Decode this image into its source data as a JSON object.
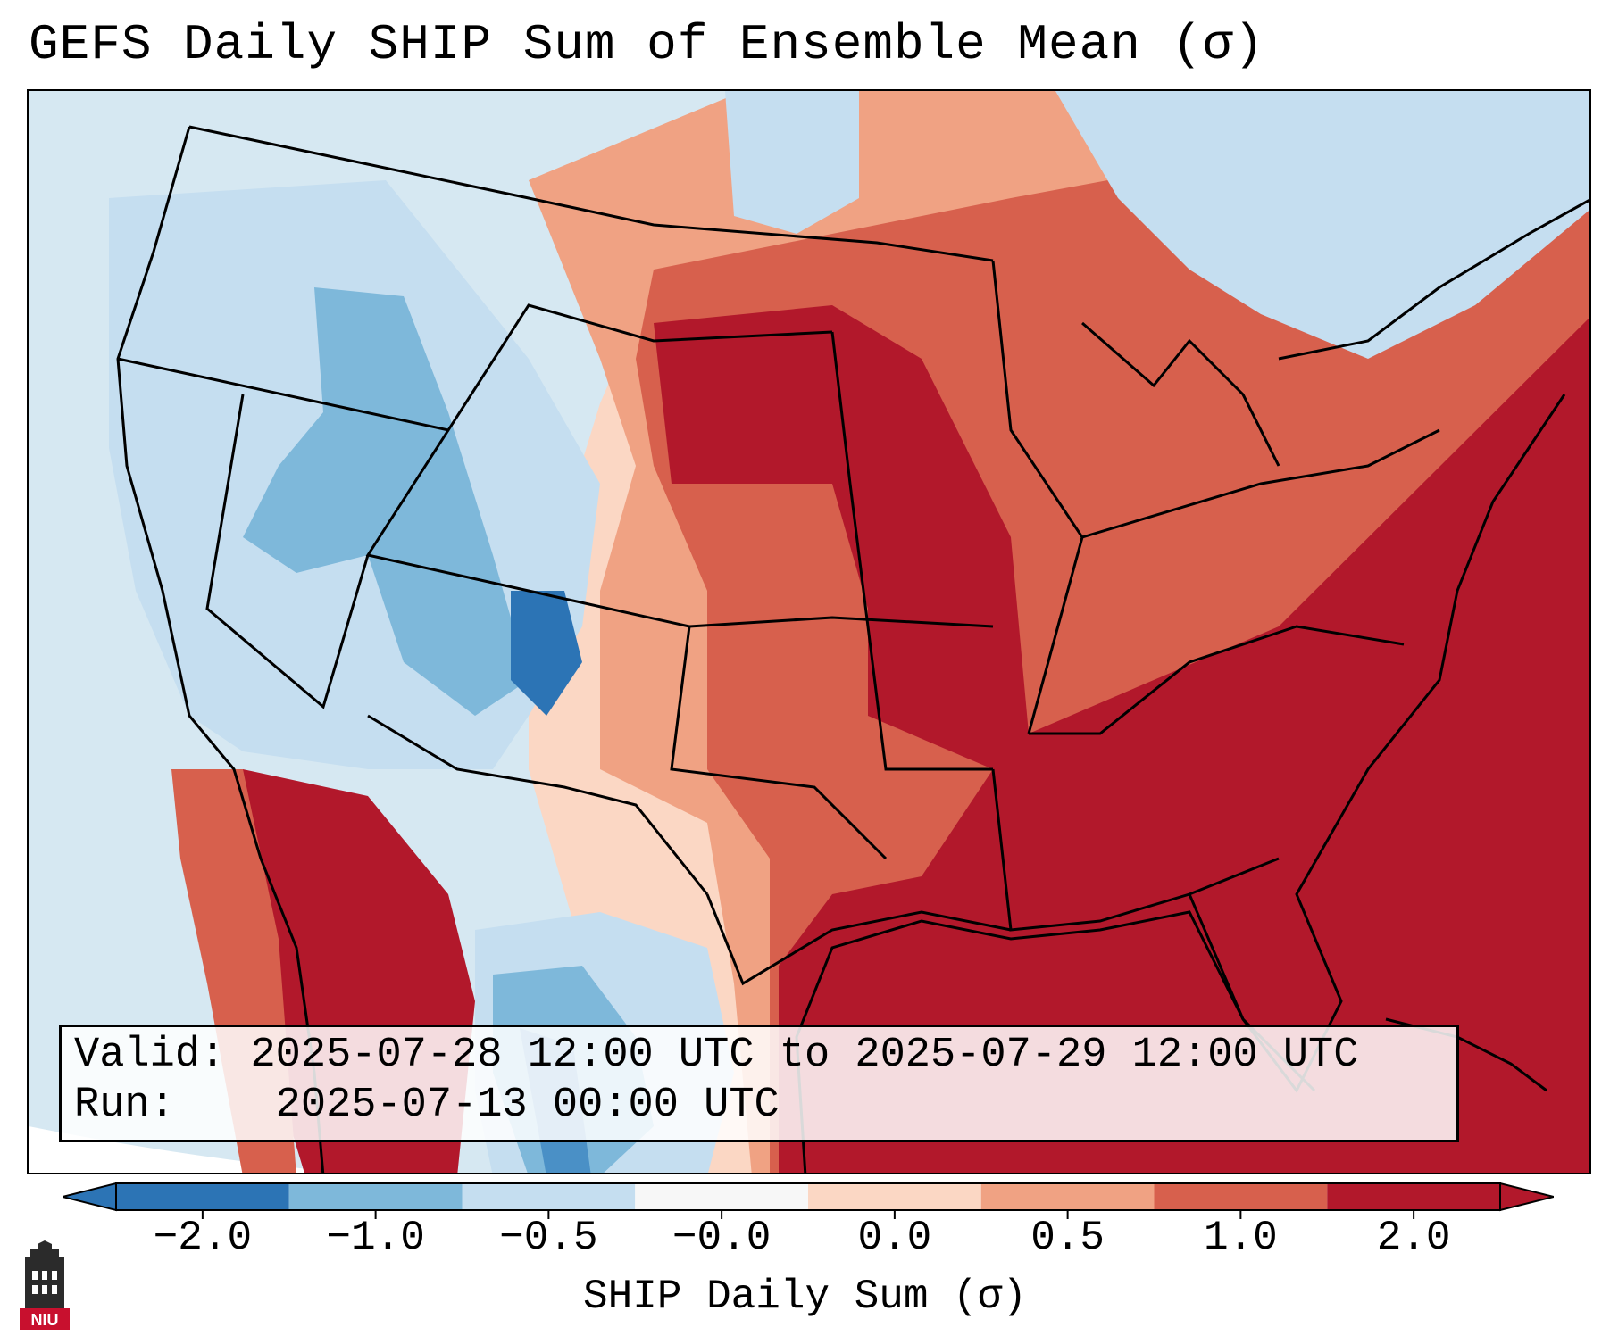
{
  "title": "GEFS Daily SHIP Sum of Ensemble Mean (σ)",
  "info": {
    "valid_label": "Valid:",
    "valid_value": "2025-07-28 12:00 UTC to 2025-07-29 12:00 UTC",
    "run_label": "Run:",
    "run_value": "2025-07-13 00:00 UTC"
  },
  "colorbar": {
    "label": "SHIP Daily Sum (σ)",
    "ticks": [
      "−2.0",
      "−1.0",
      "−0.5",
      "−0.0",
      "0.0",
      "0.5",
      "1.0",
      "2.0"
    ],
    "colors": [
      "#2c74b5",
      "#7eb8da",
      "#c5def0",
      "#f7f7f7",
      "#fbd7c4",
      "#f0a283",
      "#d7604d",
      "#b2182b"
    ]
  },
  "logo": {
    "text": "NIU",
    "color": "#c8102e"
  }
}
